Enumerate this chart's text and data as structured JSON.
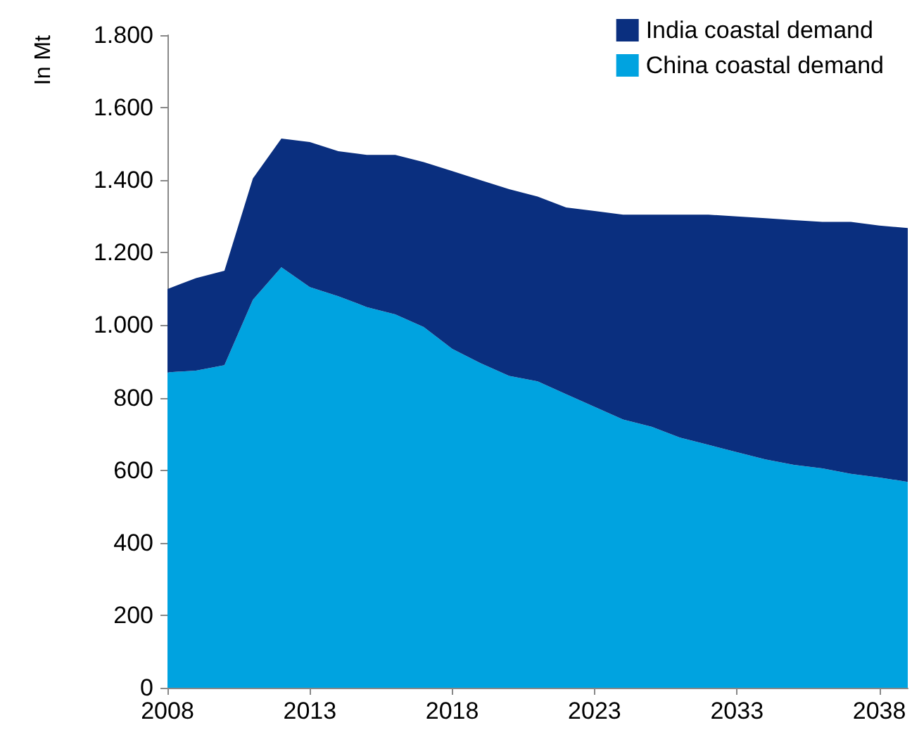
{
  "chart_data": {
    "type": "area",
    "stacked": true,
    "ylabel": "In Mt",
    "categories": [
      "2008",
      null,
      null,
      null,
      null,
      "2013",
      null,
      null,
      null,
      null,
      "2018",
      null,
      null,
      null,
      null,
      "2023",
      null,
      null,
      null,
      null,
      "2033",
      null,
      null,
      null,
      null,
      "2038",
      null
    ],
    "series": [
      {
        "name": "China coastal demand",
        "color": "#00a3e0",
        "values": [
          870,
          875,
          890,
          1070,
          1160,
          1105,
          1080,
          1050,
          1030,
          995,
          935,
          895,
          860,
          845,
          810,
          775,
          740,
          720,
          690,
          670,
          650,
          630,
          615,
          605,
          590,
          580,
          568
        ]
      },
      {
        "name": "India coastal demand",
        "color": "#0a2f7f",
        "values": [
          230,
          255,
          260,
          335,
          355,
          400,
          400,
          420,
          440,
          455,
          490,
          505,
          515,
          510,
          515,
          540,
          565,
          585,
          615,
          635,
          650,
          665,
          675,
          680,
          695,
          695,
          700
        ]
      }
    ],
    "ylim": [
      0,
      1800
    ],
    "yticks": [
      0,
      200,
      400,
      600,
      800,
      {
        "value": 1000,
        "label": "1.000"
      },
      {
        "value": 1200,
        "label": "1.200"
      },
      {
        "value": 1400,
        "label": "1.400"
      },
      {
        "value": 1600,
        "label": "1.600"
      },
      {
        "value": 1800,
        "label": "1.800"
      }
    ],
    "grid": false,
    "legend": "top right"
  }
}
